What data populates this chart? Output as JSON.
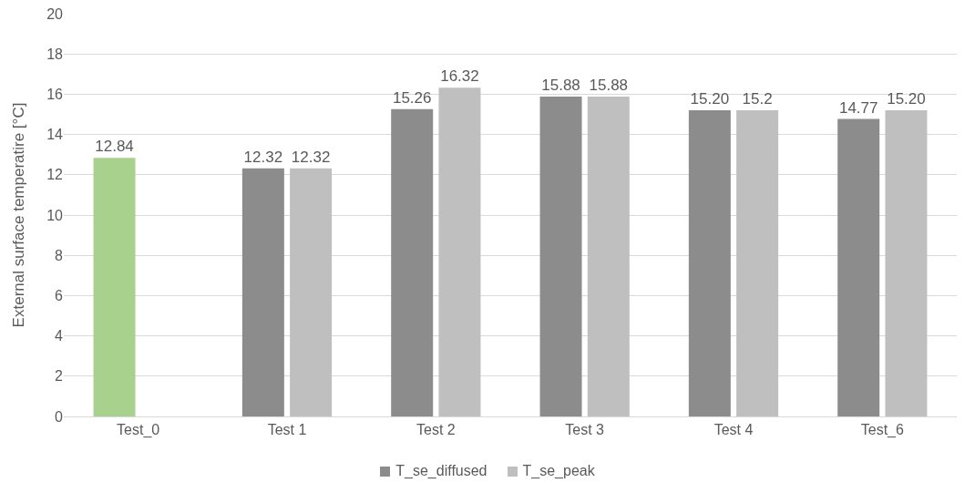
{
  "chart_data": {
    "type": "bar",
    "ylabel": "External surface temperatire [°C]",
    "categories": [
      "Test_0",
      "Test 1",
      "Test 2",
      "Test 3",
      "Test 4",
      "Test_6"
    ],
    "series": [
      {
        "name": "T_se_diffused",
        "color": "#8c8c8c",
        "colors": [
          "#a9d18e",
          "#8c8c8c",
          "#8c8c8c",
          "#8c8c8c",
          "#8c8c8c",
          "#8c8c8c"
        ],
        "values": [
          12.84,
          12.32,
          15.26,
          15.88,
          15.2,
          14.77
        ],
        "value_labels": [
          "12.84",
          "12.32",
          "15.26",
          "15.88",
          "15.20",
          "14.77"
        ]
      },
      {
        "name": "T_se_peak",
        "color": "#bfbfbf",
        "values": [
          null,
          12.32,
          16.32,
          15.88,
          15.2,
          15.2
        ],
        "value_labels": [
          null,
          "12.32",
          "16.32",
          "15.88",
          "15.2",
          "15.20"
        ]
      }
    ],
    "ylim": [
      0,
      20
    ],
    "yticks": [
      0,
      2,
      4,
      6,
      8,
      10,
      12,
      14,
      16,
      18,
      20
    ],
    "grid": "y",
    "legend": "bottom"
  }
}
